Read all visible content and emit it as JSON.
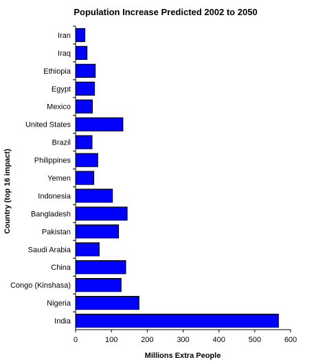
{
  "chart_data": {
    "type": "bar",
    "orientation": "horizontal",
    "title": "Population Increase Predicted 2002 to 2050",
    "xlabel": "Millions Extra People",
    "ylabel": "Country (top 16 impact)",
    "categories": [
      "Iran",
      "Iraq",
      "Ethiopia",
      "Egypt",
      "Mexico",
      "United States",
      "Brazil",
      "Philippines",
      "Yemen",
      "Indonesia",
      "Bangladesh",
      "Pakistan",
      "Saudi Arabia",
      "China",
      "Congo (Kinshasa)",
      "Nigeria",
      "India"
    ],
    "values": [
      26,
      32,
      55,
      53,
      47,
      132,
      46,
      62,
      51,
      103,
      144,
      120,
      66,
      140,
      127,
      177,
      566
    ],
    "xlim": [
      0,
      600
    ],
    "xticks": [
      0,
      100,
      200,
      300,
      400,
      500,
      600
    ],
    "grid": false,
    "legend": "none",
    "colors": {
      "bar_fill": "#0000ff",
      "bar_stroke": "#000000"
    }
  }
}
